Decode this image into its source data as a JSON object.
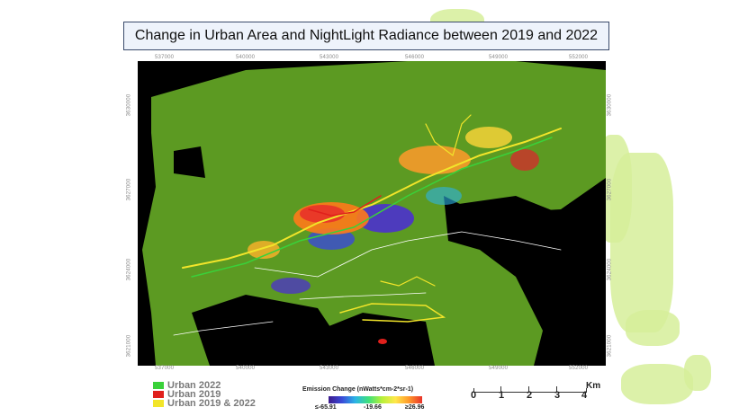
{
  "title": "Change in Urban Area and NightLight Radiance between 2019 and 2022",
  "map": {
    "top_ticks": [
      "537000",
      "540000",
      "543000",
      "546000",
      "549000",
      "552000"
    ],
    "bottom_ticks": [
      "537000",
      "540000",
      "543000",
      "546000",
      "549000",
      "552000"
    ],
    "left_ticks": [
      "3630000",
      "3627000",
      "3624000",
      "3621000"
    ],
    "right_ticks": [
      "3630000",
      "3627000",
      "3624000",
      "3621000"
    ]
  },
  "legend": {
    "items": [
      {
        "label": "Urban 2022",
        "color": "#3ad13a"
      },
      {
        "label": "Urban 2019",
        "color": "#e0201c"
      },
      {
        "label": "Urban 2019 & 2022",
        "color": "#f2e52a"
      }
    ]
  },
  "emission": {
    "title": "Emission Change (nWatts*cm-2*sr-1)",
    "min_label": "≤-65.91",
    "mid_label": "-19.66",
    "max_label": "≥26.96"
  },
  "scalebar": {
    "ticks": [
      "0",
      "1",
      "2",
      "3",
      "4"
    ],
    "unit": "Km"
  },
  "colors": {
    "background_green": "#5c9a22",
    "nodata": "#000000",
    "decrease": "#4a2ad8",
    "increase": "#e8322a"
  }
}
